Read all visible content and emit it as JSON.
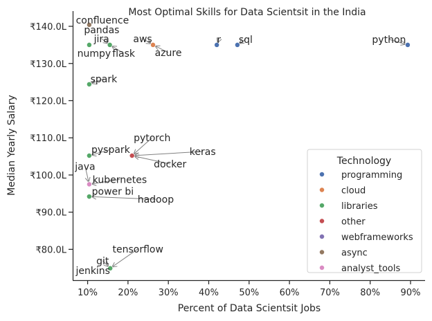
{
  "chart_data": {
    "type": "scatter",
    "title": "Most Optimal Skills for Data Scientsit in the India",
    "xlabel": "Percent of Data Scientsit Jobs",
    "ylabel": "Median Yearly Salary",
    "xlim": [
      6.3,
      93.6
    ],
    "ylim": [
      71.7,
      144.1
    ],
    "x_ticks": [
      10,
      20,
      30,
      40,
      50,
      60,
      70,
      80,
      90
    ],
    "x_tick_labels": [
      "10%",
      "20%",
      "30%",
      "40%",
      "50%",
      "60%",
      "70%",
      "80%",
      "90%"
    ],
    "y_ticks": [
      80,
      90,
      100,
      110,
      120,
      130,
      140
    ],
    "y_tick_labels": [
      "₹80.0L",
      "₹90.0L",
      "₹100.0L",
      "₹110.0L",
      "₹120.0L",
      "₹130.0L",
      "₹140.0L"
    ],
    "x_unit": "percent",
    "y_unit": "lakh INR",
    "grid": false,
    "legend": {
      "title": "Technology",
      "position": "lower-right",
      "entries": [
        {
          "name": "programming",
          "color": "#4c72b0"
        },
        {
          "name": "cloud",
          "color": "#dd8452"
        },
        {
          "name": "libraries",
          "color": "#55a868"
        },
        {
          "name": "other",
          "color": "#c44e52"
        },
        {
          "name": "webframeworks",
          "color": "#8172b3"
        },
        {
          "name": "async",
          "color": "#937860"
        },
        {
          "name": "analyst_tools",
          "color": "#da8bc3"
        }
      ]
    },
    "points": [
      {
        "label": "python",
        "x": 89.3,
        "y": 135.0,
        "category": "programming"
      },
      {
        "label": "sql",
        "x": 47.1,
        "y": 135.0,
        "category": "programming"
      },
      {
        "label": "r",
        "x": 42.0,
        "y": 135.0,
        "category": "programming"
      },
      {
        "label": "aws",
        "x": 26.2,
        "y": 135.0,
        "category": "cloud"
      },
      {
        "label": "azure",
        "x": 26.2,
        "y": 135.0,
        "category": "cloud"
      },
      {
        "label": "confluence",
        "x": 10.4,
        "y": 140.4,
        "category": "async"
      },
      {
        "label": "jira",
        "x": 15.5,
        "y": 135.0,
        "category": "async"
      },
      {
        "label": "pandas",
        "x": 10.4,
        "y": 135.0,
        "category": "libraries"
      },
      {
        "label": "numpy",
        "x": 10.4,
        "y": 135.0,
        "category": "libraries"
      },
      {
        "label": "flask",
        "x": 15.5,
        "y": 135.0,
        "category": "libraries"
      },
      {
        "label": "spark",
        "x": 10.4,
        "y": 124.4,
        "category": "libraries"
      },
      {
        "label": "pyspark",
        "x": 10.4,
        "y": 105.2,
        "category": "libraries"
      },
      {
        "label": "pytorch",
        "x": 21.0,
        "y": 105.2,
        "category": "other"
      },
      {
        "label": "keras",
        "x": 21.0,
        "y": 105.2,
        "category": "other"
      },
      {
        "label": "docker",
        "x": 21.0,
        "y": 105.2,
        "category": "other"
      },
      {
        "label": "java",
        "x": 10.4,
        "y": 97.5,
        "category": "analyst_tools"
      },
      {
        "label": "kubernetes",
        "x": 10.4,
        "y": 97.5,
        "category": "analyst_tools"
      },
      {
        "label": "power bi",
        "x": 10.4,
        "y": 97.5,
        "category": "analyst_tools"
      },
      {
        "label": "hadoop",
        "x": 10.4,
        "y": 94.2,
        "category": "libraries"
      },
      {
        "label": "tensorflow",
        "x": 15.6,
        "y": 74.9,
        "category": "libraries"
      },
      {
        "label": "git",
        "x": 15.6,
        "y": 74.9,
        "category": "libraries"
      },
      {
        "label": "jenkins",
        "x": 15.6,
        "y": 74.9,
        "category": "libraries"
      }
    ]
  }
}
